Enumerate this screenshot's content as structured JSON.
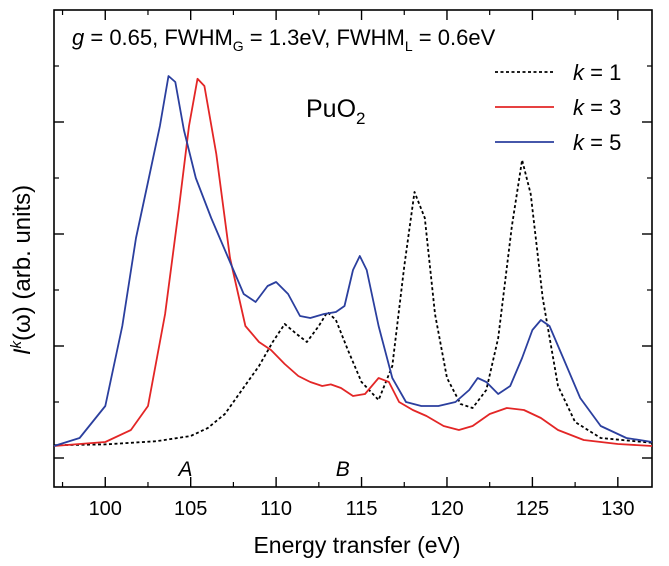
{
  "chart_data": {
    "type": "line",
    "title_parts": {
      "g_label": "g",
      "g_value": " = 0.65, FWHM",
      "g_sub": "G",
      "mid": " = 1.3eV, FWHM",
      "l_sub": "L",
      "end": " = 0.6eV"
    },
    "annotation": {
      "base": "PuO",
      "sub": "2"
    },
    "xlabel": "Energy transfer (eV)",
    "ylabel": {
      "I": "I",
      "k": "k",
      "rest": "(ω) (arb. units)"
    },
    "xlim": [
      97,
      132
    ],
    "ylim": [
      0,
      1
    ],
    "x_ticks": [
      100,
      105,
      110,
      115,
      120,
      125,
      130
    ],
    "grid": false,
    "legend_position": "top-right",
    "region_labels": [
      {
        "text": "A",
        "x": 104.7
      },
      {
        "text": "B",
        "x": 113.9
      }
    ],
    "series": [
      {
        "name": "k = 1",
        "k": "k",
        "suffix": " = 1",
        "color": "#000000",
        "dash": "dotted",
        "points": [
          [
            97,
            0.032
          ],
          [
            100,
            0.034
          ],
          [
            103,
            0.042
          ],
          [
            105,
            0.055
          ],
          [
            106,
            0.075
          ],
          [
            107,
            0.11
          ],
          [
            108,
            0.17
          ],
          [
            109,
            0.23
          ],
          [
            109.8,
            0.29
          ],
          [
            110.5,
            0.335
          ],
          [
            111.2,
            0.31
          ],
          [
            111.8,
            0.29
          ],
          [
            112.5,
            0.33
          ],
          [
            113,
            0.365
          ],
          [
            113.5,
            0.345
          ],
          [
            114.2,
            0.27
          ],
          [
            115,
            0.19
          ],
          [
            116,
            0.145
          ],
          [
            116.8,
            0.23
          ],
          [
            117.5,
            0.48
          ],
          [
            118.1,
            0.665
          ],
          [
            118.7,
            0.6
          ],
          [
            119.3,
            0.36
          ],
          [
            120,
            0.2
          ],
          [
            120.8,
            0.135
          ],
          [
            121.5,
            0.125
          ],
          [
            122.3,
            0.17
          ],
          [
            123,
            0.3
          ],
          [
            123.8,
            0.58
          ],
          [
            124.4,
            0.745
          ],
          [
            124.9,
            0.66
          ],
          [
            125.6,
            0.4
          ],
          [
            126.5,
            0.18
          ],
          [
            127.5,
            0.09
          ],
          [
            129,
            0.05
          ],
          [
            132,
            0.038
          ]
        ]
      },
      {
        "name": "k = 3",
        "k": "k",
        "suffix": " = 3",
        "color": "#e32626",
        "dash": "solid",
        "points": [
          [
            97,
            0.03
          ],
          [
            100,
            0.04
          ],
          [
            101.5,
            0.07
          ],
          [
            102.5,
            0.13
          ],
          [
            103.5,
            0.36
          ],
          [
            104.3,
            0.62
          ],
          [
            104.9,
            0.83
          ],
          [
            105.4,
            0.948
          ],
          [
            105.8,
            0.93
          ],
          [
            106.5,
            0.76
          ],
          [
            107.3,
            0.5
          ],
          [
            108.2,
            0.33
          ],
          [
            109,
            0.29
          ],
          [
            109.7,
            0.27
          ],
          [
            110.5,
            0.235
          ],
          [
            111.3,
            0.205
          ],
          [
            112,
            0.19
          ],
          [
            112.7,
            0.18
          ],
          [
            113.2,
            0.184
          ],
          [
            113.8,
            0.175
          ],
          [
            114.5,
            0.155
          ],
          [
            115.2,
            0.16
          ],
          [
            116,
            0.2
          ],
          [
            116.6,
            0.19
          ],
          [
            117.2,
            0.14
          ],
          [
            118,
            0.12
          ],
          [
            118.8,
            0.105
          ],
          [
            119.8,
            0.08
          ],
          [
            120.7,
            0.07
          ],
          [
            121.5,
            0.08
          ],
          [
            122.5,
            0.11
          ],
          [
            123.5,
            0.125
          ],
          [
            124.5,
            0.12
          ],
          [
            125.5,
            0.1
          ],
          [
            126.5,
            0.07
          ],
          [
            128,
            0.045
          ],
          [
            130,
            0.035
          ],
          [
            132,
            0.03
          ]
        ]
      },
      {
        "name": "k = 5",
        "k": "k",
        "suffix": " = 5",
        "color": "#2b3f9e",
        "dash": "solid",
        "points": [
          [
            97,
            0.03
          ],
          [
            98.5,
            0.05
          ],
          [
            100,
            0.13
          ],
          [
            101,
            0.33
          ],
          [
            101.8,
            0.55
          ],
          [
            102.5,
            0.69
          ],
          [
            103.2,
            0.83
          ],
          [
            103.7,
            0.955
          ],
          [
            104.1,
            0.94
          ],
          [
            104.6,
            0.82
          ],
          [
            105.3,
            0.7
          ],
          [
            106.2,
            0.6
          ],
          [
            107.2,
            0.5
          ],
          [
            108.1,
            0.41
          ],
          [
            108.8,
            0.39
          ],
          [
            109.5,
            0.43
          ],
          [
            110,
            0.44
          ],
          [
            110.7,
            0.41
          ],
          [
            111.4,
            0.355
          ],
          [
            112,
            0.35
          ],
          [
            112.8,
            0.36
          ],
          [
            113.5,
            0.365
          ],
          [
            114,
            0.38
          ],
          [
            114.5,
            0.47
          ],
          [
            114.9,
            0.505
          ],
          [
            115.3,
            0.47
          ],
          [
            116,
            0.33
          ],
          [
            116.8,
            0.2
          ],
          [
            117.6,
            0.14
          ],
          [
            118.5,
            0.13
          ],
          [
            119.5,
            0.13
          ],
          [
            120.5,
            0.14
          ],
          [
            121.3,
            0.17
          ],
          [
            121.8,
            0.2
          ],
          [
            122.3,
            0.19
          ],
          [
            123,
            0.16
          ],
          [
            123.7,
            0.18
          ],
          [
            124.4,
            0.25
          ],
          [
            125,
            0.32
          ],
          [
            125.5,
            0.345
          ],
          [
            126,
            0.33
          ],
          [
            126.8,
            0.25
          ],
          [
            127.8,
            0.15
          ],
          [
            129,
            0.08
          ],
          [
            130.5,
            0.05
          ],
          [
            132,
            0.04
          ]
        ]
      }
    ]
  }
}
